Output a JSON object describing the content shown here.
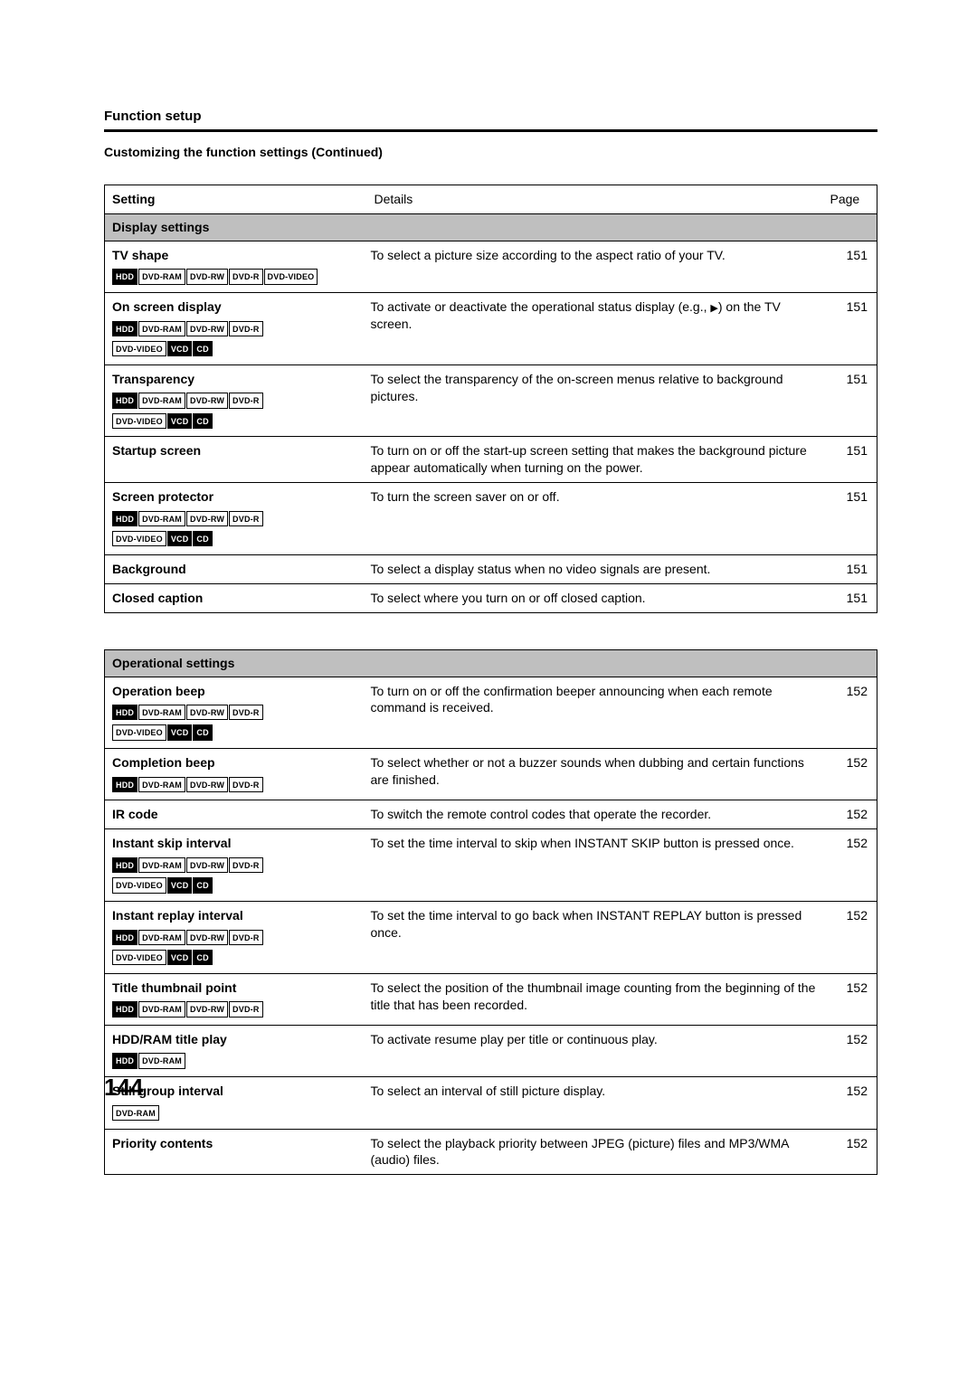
{
  "header": {
    "section": "Function setup",
    "subtitle": "Customizing the function settings (Continued)"
  },
  "columns": {
    "setting": "Setting",
    "details": "Details",
    "page": "Page"
  },
  "badgeLabels": {
    "hdd": "HDD",
    "dvdram": "DVD-RAM",
    "dvdrw": "DVD-RW",
    "dvdr": "DVD-R",
    "dvdvideo": "DVD-VIDEO",
    "vcd": "VCD",
    "cd": "CD"
  },
  "table1": {
    "sectionTitle": "Display settings",
    "rows": [
      {
        "name": "TV shape",
        "details": "To select a picture size according to the aspect ratio of your TV.",
        "page": "151",
        "badges": [
          "hdd",
          "dvdram",
          "dvdrw",
          "dvdr",
          "dvdvideo"
        ],
        "filled": [
          "hdd"
        ]
      },
      {
        "name": "On screen display",
        "detailsPrefix": "To activate or deactivate the operational status display (e.g., ",
        "detailsSuffix": ") on the TV screen.",
        "hasPlayGlyph": true,
        "page": "151",
        "badges": [
          "hdd",
          "dvdram",
          "dvdrw",
          "dvdr",
          "dvdvideo",
          "vcd",
          "cd"
        ],
        "filled": [
          "hdd",
          "vcd",
          "cd"
        ],
        "wrapAfter": 4
      },
      {
        "name": "Transparency",
        "details": "To select the transparency of the on-screen menus relative to background pictures.",
        "page": "151",
        "badges": [
          "hdd",
          "dvdram",
          "dvdrw",
          "dvdr",
          "dvdvideo",
          "vcd",
          "cd"
        ],
        "filled": [
          "hdd",
          "vcd",
          "cd"
        ],
        "wrapAfter": 4
      },
      {
        "name": "Startup screen",
        "details": "To turn on or off the start-up screen setting that makes the background picture appear automatically when turning on the power.",
        "page": "151"
      },
      {
        "name": "Screen protector",
        "details": "To turn the screen saver on or off.",
        "page": "151",
        "badges": [
          "hdd",
          "dvdram",
          "dvdrw",
          "dvdr",
          "dvdvideo",
          "vcd",
          "cd"
        ],
        "filled": [
          "hdd",
          "vcd",
          "cd"
        ],
        "wrapAfter": 4
      },
      {
        "name": "Background",
        "details": "To select a display status when no video signals are present.",
        "page": "151"
      },
      {
        "name": "Closed caption",
        "details": "To select where you turn on or off closed caption.",
        "page": "151"
      }
    ]
  },
  "table2": {
    "sectionTitle": "Operational settings",
    "rows": [
      {
        "name": "Operation beep",
        "details": "To turn on or off the confirmation beeper announcing when each remote command is received.",
        "page": "152",
        "badges": [
          "hdd",
          "dvdram",
          "dvdrw",
          "dvdr",
          "dvdvideo",
          "vcd",
          "cd"
        ],
        "filled": [
          "hdd",
          "vcd",
          "cd"
        ],
        "wrapAfter": 4
      },
      {
        "name": "Completion beep",
        "details": "To select whether or not a buzzer sounds when dubbing and certain functions are finished.",
        "page": "152",
        "badges": [
          "hdd",
          "dvdram",
          "dvdrw",
          "dvdr"
        ],
        "filled": [
          "hdd"
        ]
      },
      {
        "name": "IR code",
        "details": "To switch the remote control codes that operate the recorder.",
        "page": "152"
      },
      {
        "name": "Instant skip interval",
        "details": "To set the time interval to skip when INSTANT SKIP button is pressed once.",
        "page": "152",
        "badges": [
          "hdd",
          "dvdram",
          "dvdrw",
          "dvdr",
          "dvdvideo",
          "vcd",
          "cd"
        ],
        "filled": [
          "hdd",
          "vcd",
          "cd"
        ],
        "wrapAfter": 4
      },
      {
        "name": "Instant replay interval",
        "details": "To set the time interval to go back when INSTANT REPLAY button is pressed once.",
        "page": "152",
        "badges": [
          "hdd",
          "dvdram",
          "dvdrw",
          "dvdr",
          "dvdvideo",
          "vcd",
          "cd"
        ],
        "filled": [
          "hdd",
          "vcd",
          "cd"
        ],
        "wrapAfter": 4
      },
      {
        "name": "Title thumbnail point",
        "details": "To select the position of the thumbnail image counting from the beginning of the title that has been recorded.",
        "page": "152",
        "badges": [
          "hdd",
          "dvdram",
          "dvdrw",
          "dvdr"
        ],
        "filled": [
          "hdd"
        ]
      },
      {
        "name": "HDD/RAM title play",
        "details": "To activate resume play per title or continuous play.",
        "page": "152",
        "badges": [
          "hdd",
          "dvdram"
        ],
        "filled": [
          "hdd"
        ]
      },
      {
        "name": "Still group interval",
        "details": "To select an interval of still picture display.",
        "page": "152",
        "badges": [
          "dvdram"
        ],
        "filled": []
      },
      {
        "name": "Priority contents",
        "details": "To select the playback priority between JPEG (picture) files and MP3/WMA (audio) files.",
        "page": "152"
      }
    ]
  },
  "pageNumber": "144"
}
